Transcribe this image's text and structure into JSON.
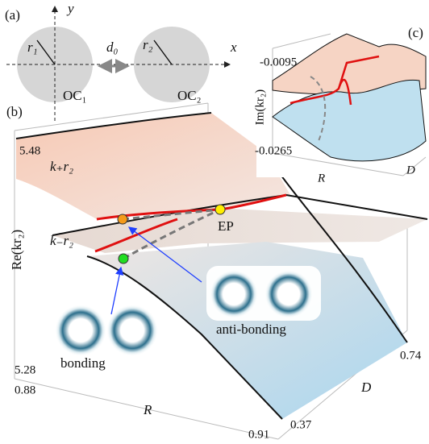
{
  "panel_a": {
    "label": "(a)",
    "y_axis": "y",
    "x_axis": "x",
    "r1": "r₁",
    "d0": "d₀",
    "r2": "r₂",
    "oc1": "OC₁",
    "oc2": "OC₂"
  },
  "panel_b": {
    "label": "(b)",
    "y_axis_title": "Re(kr₂)",
    "y_top": "5.48",
    "y_bottom": "5.28",
    "r_min": "0.88",
    "r_max": "0.91",
    "r_title": "R",
    "d_max": "0.74",
    "d_min": "0.37",
    "d_title": "D",
    "upper_branch": "k₊r₂",
    "lower_branch": "k₋r₂",
    "ep": "EP",
    "anti_bonding": "anti-bonding",
    "bonding": "bonding"
  },
  "panel_c": {
    "label": "(c)",
    "y_axis_title": "Im(kr₂)",
    "y_top": "-0.0095",
    "y_bottom": "-0.0265",
    "r_title": "R",
    "d_title": "D"
  }
}
